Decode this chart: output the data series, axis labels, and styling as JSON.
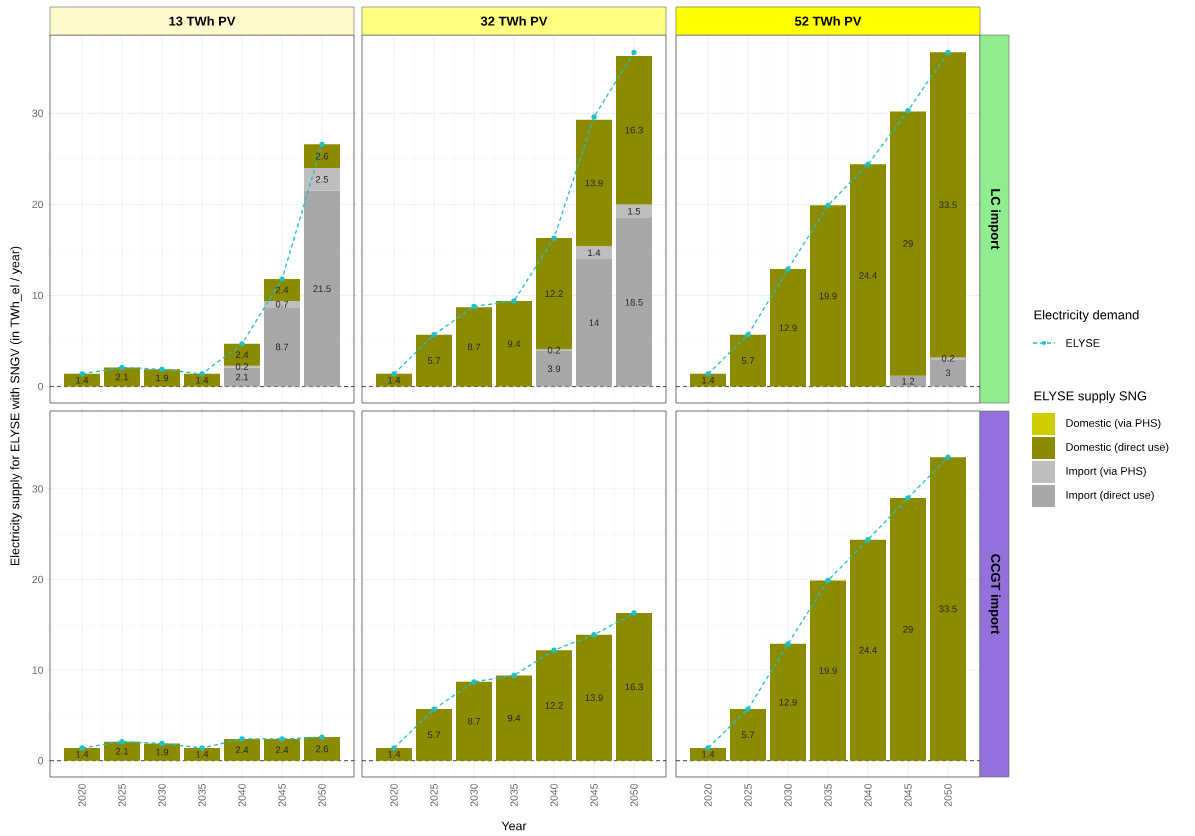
{
  "chart_data": [
    {
      "type": "bar",
      "stacked": true,
      "title": "13 TWh PV",
      "categories": [
        "2020",
        "2025",
        "2030",
        "2035",
        "2040",
        "2045",
        "2050"
      ],
      "ylim": [
        -1.8,
        38.6
      ],
      "yticks": [
        0,
        10,
        20,
        30
      ],
      "grid": true,
      "tick_labels": "y",
      "ref_lines": [
        {
          "axis": "y",
          "value": 0,
          "color": "#000000",
          "line_style": "dashed"
        }
      ],
      "series": [
        {
          "type": "bar",
          "color": "#a8a8a8",
          "data_labels": true,
          "values": [
            null,
            null,
            null,
            null,
            2.1,
            8.7,
            21.5
          ]
        },
        {
          "type": "bar",
          "color": "#bebebe",
          "data_labels": true,
          "values": [
            null,
            null,
            null,
            null,
            0.2,
            0.7,
            2.5
          ]
        },
        {
          "type": "bar",
          "color": "#8b8b00",
          "values": [
            1.4,
            2.1,
            1.9,
            1.4,
            2.4,
            2.4,
            2.6
          ],
          "value_labels": [
            "1.4",
            "2.1",
            "1.9",
            "1.4",
            "2.4",
            "2.4",
            "2.6"
          ]
        },
        {
          "type": "line",
          "color": "#1ec0c8",
          "marker": "circle",
          "line_style": "dashed",
          "values": [
            1.4,
            2.1,
            1.9,
            1.4,
            4.7,
            11.8,
            26.6
          ]
        }
      ]
    },
    {
      "type": "bar",
      "stacked": true,
      "title": "32 TWh PV",
      "categories": [
        "2020",
        "2025",
        "2030",
        "2035",
        "2040",
        "2045",
        "2050"
      ],
      "ylim": [
        -1.8,
        38.6
      ],
      "yticks": [
        0,
        10,
        20,
        30
      ],
      "grid": true,
      "tick_labels": false,
      "ref_lines": [
        {
          "axis": "y",
          "value": 0,
          "color": "#000000",
          "line_style": "dashed"
        }
      ],
      "series": [
        {
          "type": "bar",
          "color": "#a8a8a8",
          "data_labels": true,
          "values": [
            null,
            null,
            null,
            null,
            3.9,
            14,
            18.5
          ]
        },
        {
          "type": "bar",
          "color": "#bebebe",
          "data_labels": true,
          "values": [
            null,
            null,
            null,
            null,
            0.2,
            1.4,
            1.5
          ]
        },
        {
          "type": "bar",
          "color": "#8b8b00",
          "data_labels": true,
          "values": [
            1.4,
            5.7,
            8.7,
            9.4,
            12.2,
            13.9,
            16.3
          ]
        },
        {
          "type": "line",
          "color": "#1ec0c8",
          "marker": "circle",
          "line_style": "dashed",
          "values": [
            1.4,
            5.7,
            8.8,
            9.4,
            16.3,
            29.6,
            36.7
          ]
        }
      ]
    },
    {
      "type": "bar",
      "stacked": true,
      "title": "52 TWh PV",
      "y2label": "LC import",
      "legend": "right",
      "legend_title": "Electricity demand",
      "categories": [
        "2020",
        "2025",
        "2030",
        "2035",
        "2040",
        "2045",
        "2050"
      ],
      "ylim": [
        -1.8,
        38.6
      ],
      "yticks": [
        0,
        10,
        20,
        30
      ],
      "grid": true,
      "tick_labels": false,
      "ref_lines": [
        {
          "axis": "y",
          "value": 0,
          "color": "#000000",
          "line_style": "dashed"
        }
      ],
      "series": [
        {
          "type": "bar",
          "color": "#a8a8a8",
          "data_labels": true,
          "values": [
            null,
            null,
            null,
            null,
            null,
            1.2,
            3
          ]
        },
        {
          "type": "bar",
          "color": "#bebebe",
          "data_labels": true,
          "values": [
            null,
            null,
            null,
            null,
            null,
            null,
            0.2
          ]
        },
        {
          "type": "bar",
          "color": "#8b8b00",
          "data_labels": true,
          "values": [
            1.4,
            5.7,
            12.9,
            19.9,
            24.4,
            29,
            33.5
          ]
        },
        {
          "type": "line",
          "name": "ELYSE",
          "color": "#1ec0c8",
          "marker": "circle",
          "line_style": "dashed",
          "values": [
            1.4,
            5.7,
            12.9,
            19.9,
            24.4,
            30.3,
            36.7
          ]
        }
      ]
    },
    {
      "type": "bar",
      "stacked": true,
      "ylabel": "Electricity supply for ELYSE with SNGV (in TWh_el / year)",
      "categories": [
        "2020",
        "2025",
        "2030",
        "2035",
        "2040",
        "2045",
        "2050"
      ],
      "ylim": [
        -1.8,
        38.6
      ],
      "yticks": [
        0,
        10,
        20,
        30
      ],
      "grid": true,
      "ref_lines": [
        {
          "axis": "y",
          "value": 0,
          "color": "#000000",
          "line_style": "dashed"
        }
      ],
      "series": [
        {
          "type": "bar",
          "color": "#8b8b00",
          "values": [
            1.4,
            2.1,
            1.9,
            1.4,
            2.4,
            2.4,
            2.6
          ],
          "value_labels": [
            "1.4",
            "2.1",
            "1.9",
            "1.4",
            "2.4",
            "2.4",
            "2.6"
          ]
        },
        {
          "type": "line",
          "color": "#1ec0c8",
          "marker": "circle",
          "line_style": "dashed",
          "values": [
            1.4,
            2.1,
            1.9,
            1.4,
            2.4,
            2.4,
            2.6
          ]
        }
      ]
    },
    {
      "type": "bar",
      "stacked": true,
      "xlabel": "Year",
      "categories": [
        "2020",
        "2025",
        "2030",
        "2035",
        "2040",
        "2045",
        "2050"
      ],
      "ylim": [
        -1.8,
        38.6
      ],
      "yticks": [
        0,
        10,
        20,
        30
      ],
      "grid": true,
      "tick_labels": "x",
      "ref_lines": [
        {
          "axis": "y",
          "value": 0,
          "color": "#000000",
          "line_style": "dashed"
        }
      ],
      "series": [
        {
          "type": "bar",
          "color": "#8b8b00",
          "data_labels": true,
          "values": [
            1.4,
            5.7,
            8.7,
            9.4,
            12.2,
            13.9,
            16.3
          ]
        },
        {
          "type": "line",
          "color": "#1ec0c8",
          "marker": "circle",
          "line_style": "dashed",
          "values": [
            1.4,
            5.7,
            8.7,
            9.4,
            12.2,
            13.9,
            16.3
          ]
        }
      ]
    },
    {
      "type": "bar",
      "stacked": true,
      "y2label": "CCGT import",
      "legend": "right",
      "legend_title": "ELYSE supply SNG",
      "categories": [
        "2020",
        "2025",
        "2030",
        "2035",
        "2040",
        "2045",
        "2050"
      ],
      "ylim": [
        -1.8,
        38.6
      ],
      "yticks": [
        0,
        10,
        20,
        30
      ],
      "grid": true,
      "tick_labels": "x",
      "ref_lines": [
        {
          "axis": "y",
          "value": 0,
          "color": "#000000",
          "line_style": "dashed"
        }
      ],
      "series": [
        {
          "type": "bar",
          "name": "Import (direct use)",
          "color": "#a8a8a8",
          "data_labels": true,
          "values": [
            null,
            null,
            null,
            null,
            null,
            null,
            null
          ]
        },
        {
          "type": "bar",
          "name": "Import (via PHS)",
          "color": "#bebebe",
          "data_labels": true,
          "values": [
            null,
            null,
            null,
            null,
            null,
            null,
            null
          ]
        },
        {
          "type": "bar",
          "name": "Domestic (direct use)",
          "color": "#8b8b00",
          "data_labels": true,
          "values": [
            1.4,
            5.7,
            12.9,
            19.9,
            24.4,
            29,
            33.5
          ]
        },
        {
          "type": "bar",
          "name": "Domestic (via PHS)",
          "color": "#cdcd00",
          "data_labels": true,
          "values": [
            null,
            null,
            null,
            null,
            null,
            null,
            null
          ]
        },
        {
          "type": "line",
          "color": "#1ec0c8",
          "marker": "circle",
          "line_style": "dashed",
          "values": [
            1.4,
            5.7,
            12.9,
            19.9,
            24.4,
            29,
            33.5
          ]
        }
      ]
    }
  ]
}
